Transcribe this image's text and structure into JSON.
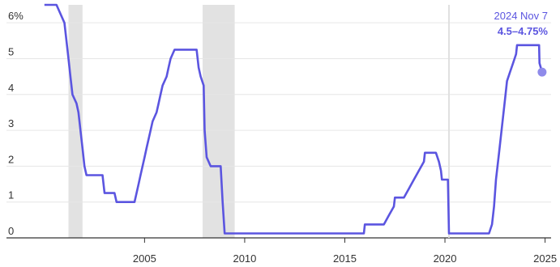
{
  "chart_data": {
    "type": "line",
    "title": "",
    "xlabel": "",
    "ylabel": "",
    "xlim": [
      1999.4,
      2025.3
    ],
    "ylim": [
      0,
      6.5
    ],
    "x_ticks": [
      {
        "value": 2005,
        "label": "2005"
      },
      {
        "value": 2010,
        "label": "2010"
      },
      {
        "value": 2015,
        "label": "2015"
      },
      {
        "value": 2020,
        "label": "2020"
      },
      {
        "value": 2025,
        "label": "2025"
      }
    ],
    "y_ticks": [
      {
        "value": 0,
        "label": "0"
      },
      {
        "value": 1,
        "label": "1"
      },
      {
        "value": 2,
        "label": "2"
      },
      {
        "value": 3,
        "label": "3"
      },
      {
        "value": 4,
        "label": "4"
      },
      {
        "value": 5,
        "label": "5"
      },
      {
        "value": 6,
        "label": "6%"
      }
    ],
    "grid": true,
    "recessions": [
      {
        "start": 2001.2,
        "end": 2001.9
      },
      {
        "start": 2007.9,
        "end": 2009.5
      }
    ],
    "covid_marker": 2020.2,
    "series": [
      {
        "color": "#5b55e0",
        "points": [
          [
            2000.0,
            6.5
          ],
          [
            2000.6,
            6.5
          ],
          [
            2001.0,
            6.0
          ],
          [
            2001.1,
            5.5
          ],
          [
            2001.2,
            5.0
          ],
          [
            2001.3,
            4.5
          ],
          [
            2001.4,
            4.0
          ],
          [
            2001.6,
            3.75
          ],
          [
            2001.7,
            3.5
          ],
          [
            2001.8,
            3.0
          ],
          [
            2001.9,
            2.5
          ],
          [
            2002.0,
            2.0
          ],
          [
            2002.1,
            1.75
          ],
          [
            2002.9,
            1.75
          ],
          [
            2003.0,
            1.25
          ],
          [
            2003.5,
            1.25
          ],
          [
            2003.6,
            1.0
          ],
          [
            2004.5,
            1.0
          ],
          [
            2004.6,
            1.25
          ],
          [
            2004.7,
            1.5
          ],
          [
            2004.8,
            1.75
          ],
          [
            2004.9,
            2.0
          ],
          [
            2005.0,
            2.25
          ],
          [
            2005.1,
            2.5
          ],
          [
            2005.2,
            2.75
          ],
          [
            2005.3,
            3.0
          ],
          [
            2005.4,
            3.25
          ],
          [
            2005.6,
            3.5
          ],
          [
            2005.7,
            3.75
          ],
          [
            2005.8,
            4.0
          ],
          [
            2005.9,
            4.25
          ],
          [
            2006.1,
            4.5
          ],
          [
            2006.2,
            4.75
          ],
          [
            2006.3,
            5.0
          ],
          [
            2006.5,
            5.25
          ],
          [
            2007.6,
            5.25
          ],
          [
            2007.7,
            4.75
          ],
          [
            2007.8,
            4.5
          ],
          [
            2007.95,
            4.25
          ],
          [
            2008.0,
            3.0
          ],
          [
            2008.1,
            2.25
          ],
          [
            2008.3,
            2.0
          ],
          [
            2008.8,
            2.0
          ],
          [
            2008.85,
            1.5
          ],
          [
            2008.9,
            1.0
          ],
          [
            2009.0,
            0.125
          ],
          [
            2015.95,
            0.125
          ],
          [
            2016.0,
            0.375
          ],
          [
            2016.95,
            0.375
          ],
          [
            2017.2,
            0.625
          ],
          [
            2017.45,
            0.875
          ],
          [
            2017.5,
            1.125
          ],
          [
            2017.95,
            1.125
          ],
          [
            2018.2,
            1.375
          ],
          [
            2018.45,
            1.625
          ],
          [
            2018.7,
            1.875
          ],
          [
            2018.95,
            2.125
          ],
          [
            2019.0,
            2.375
          ],
          [
            2019.55,
            2.375
          ],
          [
            2019.7,
            2.125
          ],
          [
            2019.8,
            1.875
          ],
          [
            2019.85,
            1.625
          ],
          [
            2020.15,
            1.625
          ],
          [
            2020.2,
            0.125
          ],
          [
            2022.2,
            0.125
          ],
          [
            2022.35,
            0.375
          ],
          [
            2022.45,
            0.875
          ],
          [
            2022.55,
            1.625
          ],
          [
            2022.7,
            2.375
          ],
          [
            2022.85,
            3.125
          ],
          [
            2023.0,
            3.875
          ],
          [
            2023.1,
            4.375
          ],
          [
            2023.25,
            4.625
          ],
          [
            2023.4,
            4.875
          ],
          [
            2023.55,
            5.125
          ],
          [
            2023.6,
            5.375
          ],
          [
            2024.7,
            5.375
          ],
          [
            2024.72,
            4.875
          ],
          [
            2024.85,
            4.625
          ]
        ]
      }
    ],
    "annotation": {
      "date": "2024 Nov 7",
      "value": "4.5–4.75%",
      "x": 2024.85,
      "y": 4.625,
      "color": "#5b55e0"
    }
  }
}
